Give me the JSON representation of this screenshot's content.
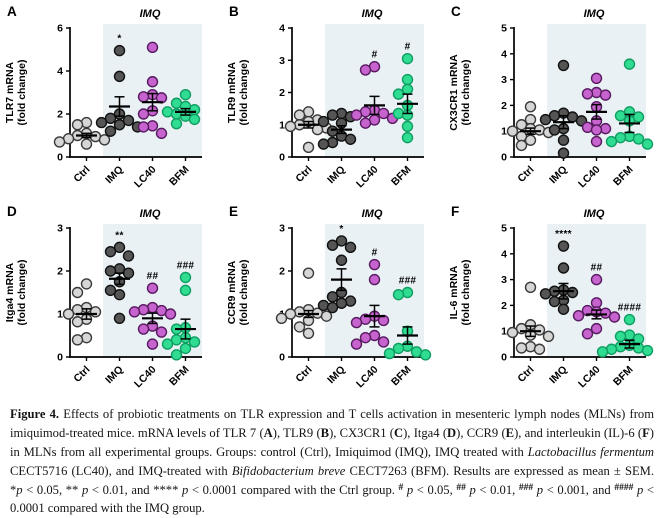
{
  "figure": {
    "shade_color": "#e9f1f5",
    "axis_color": "#000000",
    "group_colors": {
      "ctrl": {
        "fill": "#d6d6d6",
        "stroke": "#3a3a3a"
      },
      "imq": {
        "fill": "#555555",
        "stroke": "#111111"
      },
      "lc40": {
        "fill": "#c763ce",
        "stroke": "#571b60"
      },
      "bfm": {
        "fill": "#2fdc92",
        "stroke": "#0f9e62"
      }
    },
    "caption": {
      "segments": [
        {
          "style": "bold",
          "text": "Figure 4."
        },
        {
          "style": "normal",
          "text": " Effects of probiotic treatments on TLR expression and T cells activation in mesenteric lymph nodes (MLNs) from imiquimod-treated mice. mRNA levels of TLR 7 ("
        },
        {
          "style": "bold",
          "text": "A"
        },
        {
          "style": "normal",
          "text": "), TLR9 ("
        },
        {
          "style": "bold",
          "text": "B"
        },
        {
          "style": "normal",
          "text": "), CX3CR1 ("
        },
        {
          "style": "bold",
          "text": "C"
        },
        {
          "style": "normal",
          "text": "), Itga4 ("
        },
        {
          "style": "bold",
          "text": "D"
        },
        {
          "style": "normal",
          "text": "), CCR9 ("
        },
        {
          "style": "bold",
          "text": "E"
        },
        {
          "style": "normal",
          "text": "), and interleukin (IL)-6 ("
        },
        {
          "style": "bold",
          "text": "F"
        },
        {
          "style": "normal",
          "text": ") in MLNs from all experimental groups. Groups: control (Ctrl), Imiquimod (IMQ), IMQ treated with "
        },
        {
          "style": "italic",
          "text": "Lactobacillus fermentum"
        },
        {
          "style": "normal",
          "text": " CECT5716 (LC40), and IMQ-treated with "
        },
        {
          "style": "italic",
          "text": "Bifidobacterium breve"
        },
        {
          "style": "normal",
          "text": " CECT7263 (BFM). Results are expressed as mean ± SEM. *"
        },
        {
          "style": "italic",
          "text": "p"
        },
        {
          "style": "normal",
          "text": " < 0.05, ** "
        },
        {
          "style": "italic",
          "text": "p"
        },
        {
          "style": "normal",
          "text": " < 0.01, and **** "
        },
        {
          "style": "italic",
          "text": "p"
        },
        {
          "style": "normal",
          "text": " < 0.0001 compared with the Ctrl group. "
        },
        {
          "style": "sup",
          "text": "#"
        },
        {
          "style": "normal",
          "text": " "
        },
        {
          "style": "italic",
          "text": "p"
        },
        {
          "style": "normal",
          "text": " < 0.05, "
        },
        {
          "style": "sup",
          "text": "##"
        },
        {
          "style": "normal",
          "text": " "
        },
        {
          "style": "italic",
          "text": "p"
        },
        {
          "style": "normal",
          "text": " < 0.01, "
        },
        {
          "style": "sup",
          "text": "###"
        },
        {
          "style": "normal",
          "text": " "
        },
        {
          "style": "italic",
          "text": "p"
        },
        {
          "style": "normal",
          "text": " < 0.001, and "
        },
        {
          "style": "sup",
          "text": "####"
        },
        {
          "style": "normal",
          "text": " "
        },
        {
          "style": "italic",
          "text": "p"
        },
        {
          "style": "normal",
          "text": " < 0.0001 compared with the IMQ group."
        }
      ]
    }
  },
  "chart_data": [
    {
      "panel": "A",
      "type": "scatter",
      "ylabel": [
        "TLR7 mRNA",
        "(fold change)"
      ],
      "ylim": [
        0,
        6
      ],
      "ytick_step": 2,
      "shade_label": "IMQ",
      "categories": [
        "Ctrl",
        "IMQ",
        "LC40",
        "BFM"
      ],
      "series": [
        {
          "name": "Ctrl",
          "color": "ctrl",
          "values": [
            1.6,
            1.5,
            1.1,
            1.0,
            0.95,
            0.85,
            0.8,
            0.7,
            0.6
          ],
          "mean": 1.0,
          "sem": 0.1,
          "sig": ""
        },
        {
          "name": "IMQ",
          "color": "imq",
          "values": [
            4.95,
            3.75,
            2.0,
            1.8,
            1.7,
            1.6,
            1.5,
            1.4,
            1.2
          ],
          "mean": 2.35,
          "sem": 0.45,
          "sig": "*"
        },
        {
          "name": "LC40",
          "color": "lc40",
          "values": [
            5.1,
            3.5,
            2.9,
            2.8,
            2.75,
            2.15,
            2.0,
            1.45,
            1.4,
            1.1
          ],
          "mean": 2.55,
          "sem": 0.4,
          "sig": ""
        },
        {
          "name": "BFM",
          "color": "bfm",
          "values": [
            2.9,
            2.5,
            2.35,
            2.2,
            2.1,
            2.0,
            1.9,
            1.75,
            1.55
          ],
          "mean": 2.1,
          "sem": 0.15,
          "sig": ""
        }
      ]
    },
    {
      "panel": "B",
      "type": "scatter",
      "ylabel": [
        "TLR9 mRNA",
        "(fold change)"
      ],
      "ylim": [
        0,
        4
      ],
      "ytick_step": 1,
      "shade_label": "IMQ",
      "categories": [
        "Ctrl",
        "IMQ",
        "LC40",
        "BFM"
      ],
      "series": [
        {
          "name": "Ctrl",
          "color": "ctrl",
          "values": [
            1.4,
            1.3,
            1.15,
            1.1,
            1.0,
            0.95,
            0.9,
            0.85,
            0.3
          ],
          "mean": 1.0,
          "sem": 0.1,
          "sig": ""
        },
        {
          "name": "IMQ",
          "color": "imq",
          "values": [
            1.35,
            1.3,
            1.25,
            1.1,
            1.05,
            0.8,
            0.65,
            0.55,
            0.45,
            0.4
          ],
          "mean": 0.85,
          "sem": 0.12,
          "sig": ""
        },
        {
          "name": "LC40",
          "color": "lc40",
          "values": [
            2.8,
            2.7,
            1.45,
            1.4,
            1.35,
            1.3,
            1.2,
            1.15,
            1.05
          ],
          "mean": 1.6,
          "sem": 0.28,
          "sig": "#"
        },
        {
          "name": "BFM",
          "color": "bfm",
          "values": [
            3.05,
            2.4,
            2.1,
            1.95,
            1.6,
            1.35,
            1.3,
            0.95,
            0.6
          ],
          "mean": 1.65,
          "sem": 0.3,
          "sig": "#"
        }
      ]
    },
    {
      "panel": "C",
      "type": "scatter",
      "ylabel": [
        "CX3CR1 mRNA",
        "(fold change)"
      ],
      "ylim": [
        0,
        5
      ],
      "ytick_step": 1,
      "shade_label": "IMQ",
      "categories": [
        "Ctrl",
        "IMQ",
        "LC40",
        "BFM"
      ],
      "series": [
        {
          "name": "Ctrl",
          "color": "ctrl",
          "values": [
            1.95,
            1.45,
            1.25,
            1.1,
            1.05,
            1.0,
            0.95,
            0.8,
            0.65,
            0.45
          ],
          "mean": 1.0,
          "sem": 0.12,
          "sig": ""
        },
        {
          "name": "IMQ",
          "color": "imq",
          "values": [
            3.55,
            1.7,
            1.6,
            1.55,
            1.45,
            1.4,
            1.1,
            1.05,
            0.65,
            0.15
          ],
          "mean": 1.35,
          "sem": 0.25,
          "sig": ""
        },
        {
          "name": "LC40",
          "color": "lc40",
          "values": [
            3.05,
            2.5,
            2.45,
            2.4,
            1.95,
            1.4,
            1.15,
            1.1,
            1.05,
            0.6
          ],
          "mean": 1.75,
          "sem": 0.28,
          "sig": ""
        },
        {
          "name": "BFM",
          "color": "bfm",
          "values": [
            3.6,
            1.75,
            1.6,
            1.55,
            1.4,
            0.8,
            0.75,
            0.7,
            0.6,
            0.5
          ],
          "mean": 1.3,
          "sem": 0.35,
          "sig": ""
        }
      ]
    },
    {
      "panel": "D",
      "type": "scatter",
      "ylabel": [
        "Itga4 mRNA",
        "(fold change)"
      ],
      "ylim": [
        0,
        3
      ],
      "ytick_step": 1,
      "shade_label": "IMQ",
      "categories": [
        "Ctrl",
        "IMQ",
        "LC40",
        "BFM"
      ],
      "series": [
        {
          "name": "Ctrl",
          "color": "ctrl",
          "values": [
            1.7,
            1.5,
            1.15,
            1.1,
            1.05,
            1.0,
            0.88,
            0.82,
            0.45,
            0.4
          ],
          "mean": 1.0,
          "sem": 0.12,
          "sig": ""
        },
        {
          "name": "IMQ",
          "color": "imq",
          "values": [
            2.55,
            2.45,
            2.35,
            2.05,
            2.0,
            1.95,
            1.75,
            1.55,
            1.45,
            0.9
          ],
          "mean": 1.82,
          "sem": 0.13,
          "sig": "**"
        },
        {
          "name": "LC40",
          "color": "lc40",
          "values": [
            1.6,
            1.15,
            1.1,
            1.08,
            1.05,
            1.0,
            0.72,
            0.65,
            0.58,
            0.3
          ],
          "mean": 0.9,
          "sem": 0.12,
          "sig": "##"
        },
        {
          "name": "BFM",
          "color": "bfm",
          "values": [
            1.85,
            1.55,
            0.68,
            0.65,
            0.45,
            0.4,
            0.35,
            0.3,
            0.2,
            0.05
          ],
          "mean": 0.65,
          "sem": 0.23,
          "sig": "###"
        }
      ]
    },
    {
      "panel": "E",
      "type": "scatter",
      "ylabel": [
        "CCR9 mRNA",
        "(fold change)"
      ],
      "ylim": [
        0,
        3
      ],
      "ytick_step": 1,
      "shade_label": "IMQ",
      "categories": [
        "Ctrl",
        "IMQ",
        "LC40",
        "BFM"
      ],
      "series": [
        {
          "name": "Ctrl",
          "color": "ctrl",
          "values": [
            1.95,
            1.1,
            1.05,
            1.02,
            1.0,
            0.95,
            0.9,
            0.85,
            0.7,
            0.55
          ],
          "mean": 1.0,
          "sem": 0.08,
          "sig": ""
        },
        {
          "name": "IMQ",
          "color": "imq",
          "values": [
            2.7,
            2.6,
            2.55,
            2.25,
            1.5,
            1.4,
            1.3,
            1.25,
            1.2,
            1.15
          ],
          "mean": 1.8,
          "sem": 0.25,
          "sig": "*"
        },
        {
          "name": "LC40",
          "color": "lc40",
          "values": [
            2.15,
            1.8,
            0.95,
            0.88,
            0.85,
            0.8,
            0.5,
            0.45,
            0.35,
            0.3
          ],
          "mean": 0.95,
          "sem": 0.25,
          "sig": "#"
        },
        {
          "name": "BFM",
          "color": "bfm",
          "values": [
            1.5,
            1.45,
            0.6,
            0.25,
            0.2,
            0.12,
            0.08,
            0.05
          ],
          "mean": 0.5,
          "sem": 0.2,
          "sig": "###"
        }
      ]
    },
    {
      "panel": "F",
      "type": "scatter",
      "ylabel": [
        "IL-6 mRNA",
        "(fold change)"
      ],
      "ylim": [
        0,
        5
      ],
      "ytick_step": 1,
      "shade_label": "IMQ",
      "categories": [
        "Ctrl",
        "IMQ",
        "LC40",
        "BFM"
      ],
      "series": [
        {
          "name": "Ctrl",
          "color": "ctrl",
          "values": [
            2.7,
            1.25,
            1.1,
            1.05,
            0.95,
            0.85,
            0.8,
            0.4,
            0.35,
            0.3
          ],
          "mean": 1.0,
          "sem": 0.2,
          "sig": ""
        },
        {
          "name": "IMQ",
          "color": "imq",
          "values": [
            4.3,
            3.45,
            2.6,
            2.55,
            2.5,
            2.45,
            2.2,
            2.15,
            1.85
          ],
          "mean": 2.55,
          "sem": 0.3,
          "sig": "****"
        },
        {
          "name": "LC40",
          "color": "lc40",
          "values": [
            3.0,
            2.1,
            1.8,
            1.75,
            1.7,
            1.6,
            1.55,
            1.1,
            0.9
          ],
          "mean": 1.65,
          "sem": 0.17,
          "sig": "##"
        },
        {
          "name": "BFM",
          "color": "bfm",
          "values": [
            1.45,
            0.85,
            0.8,
            0.7,
            0.45,
            0.4,
            0.35,
            0.3,
            0.25,
            0.2
          ],
          "mean": 0.5,
          "sem": 0.15,
          "sig": "####"
        }
      ]
    }
  ]
}
